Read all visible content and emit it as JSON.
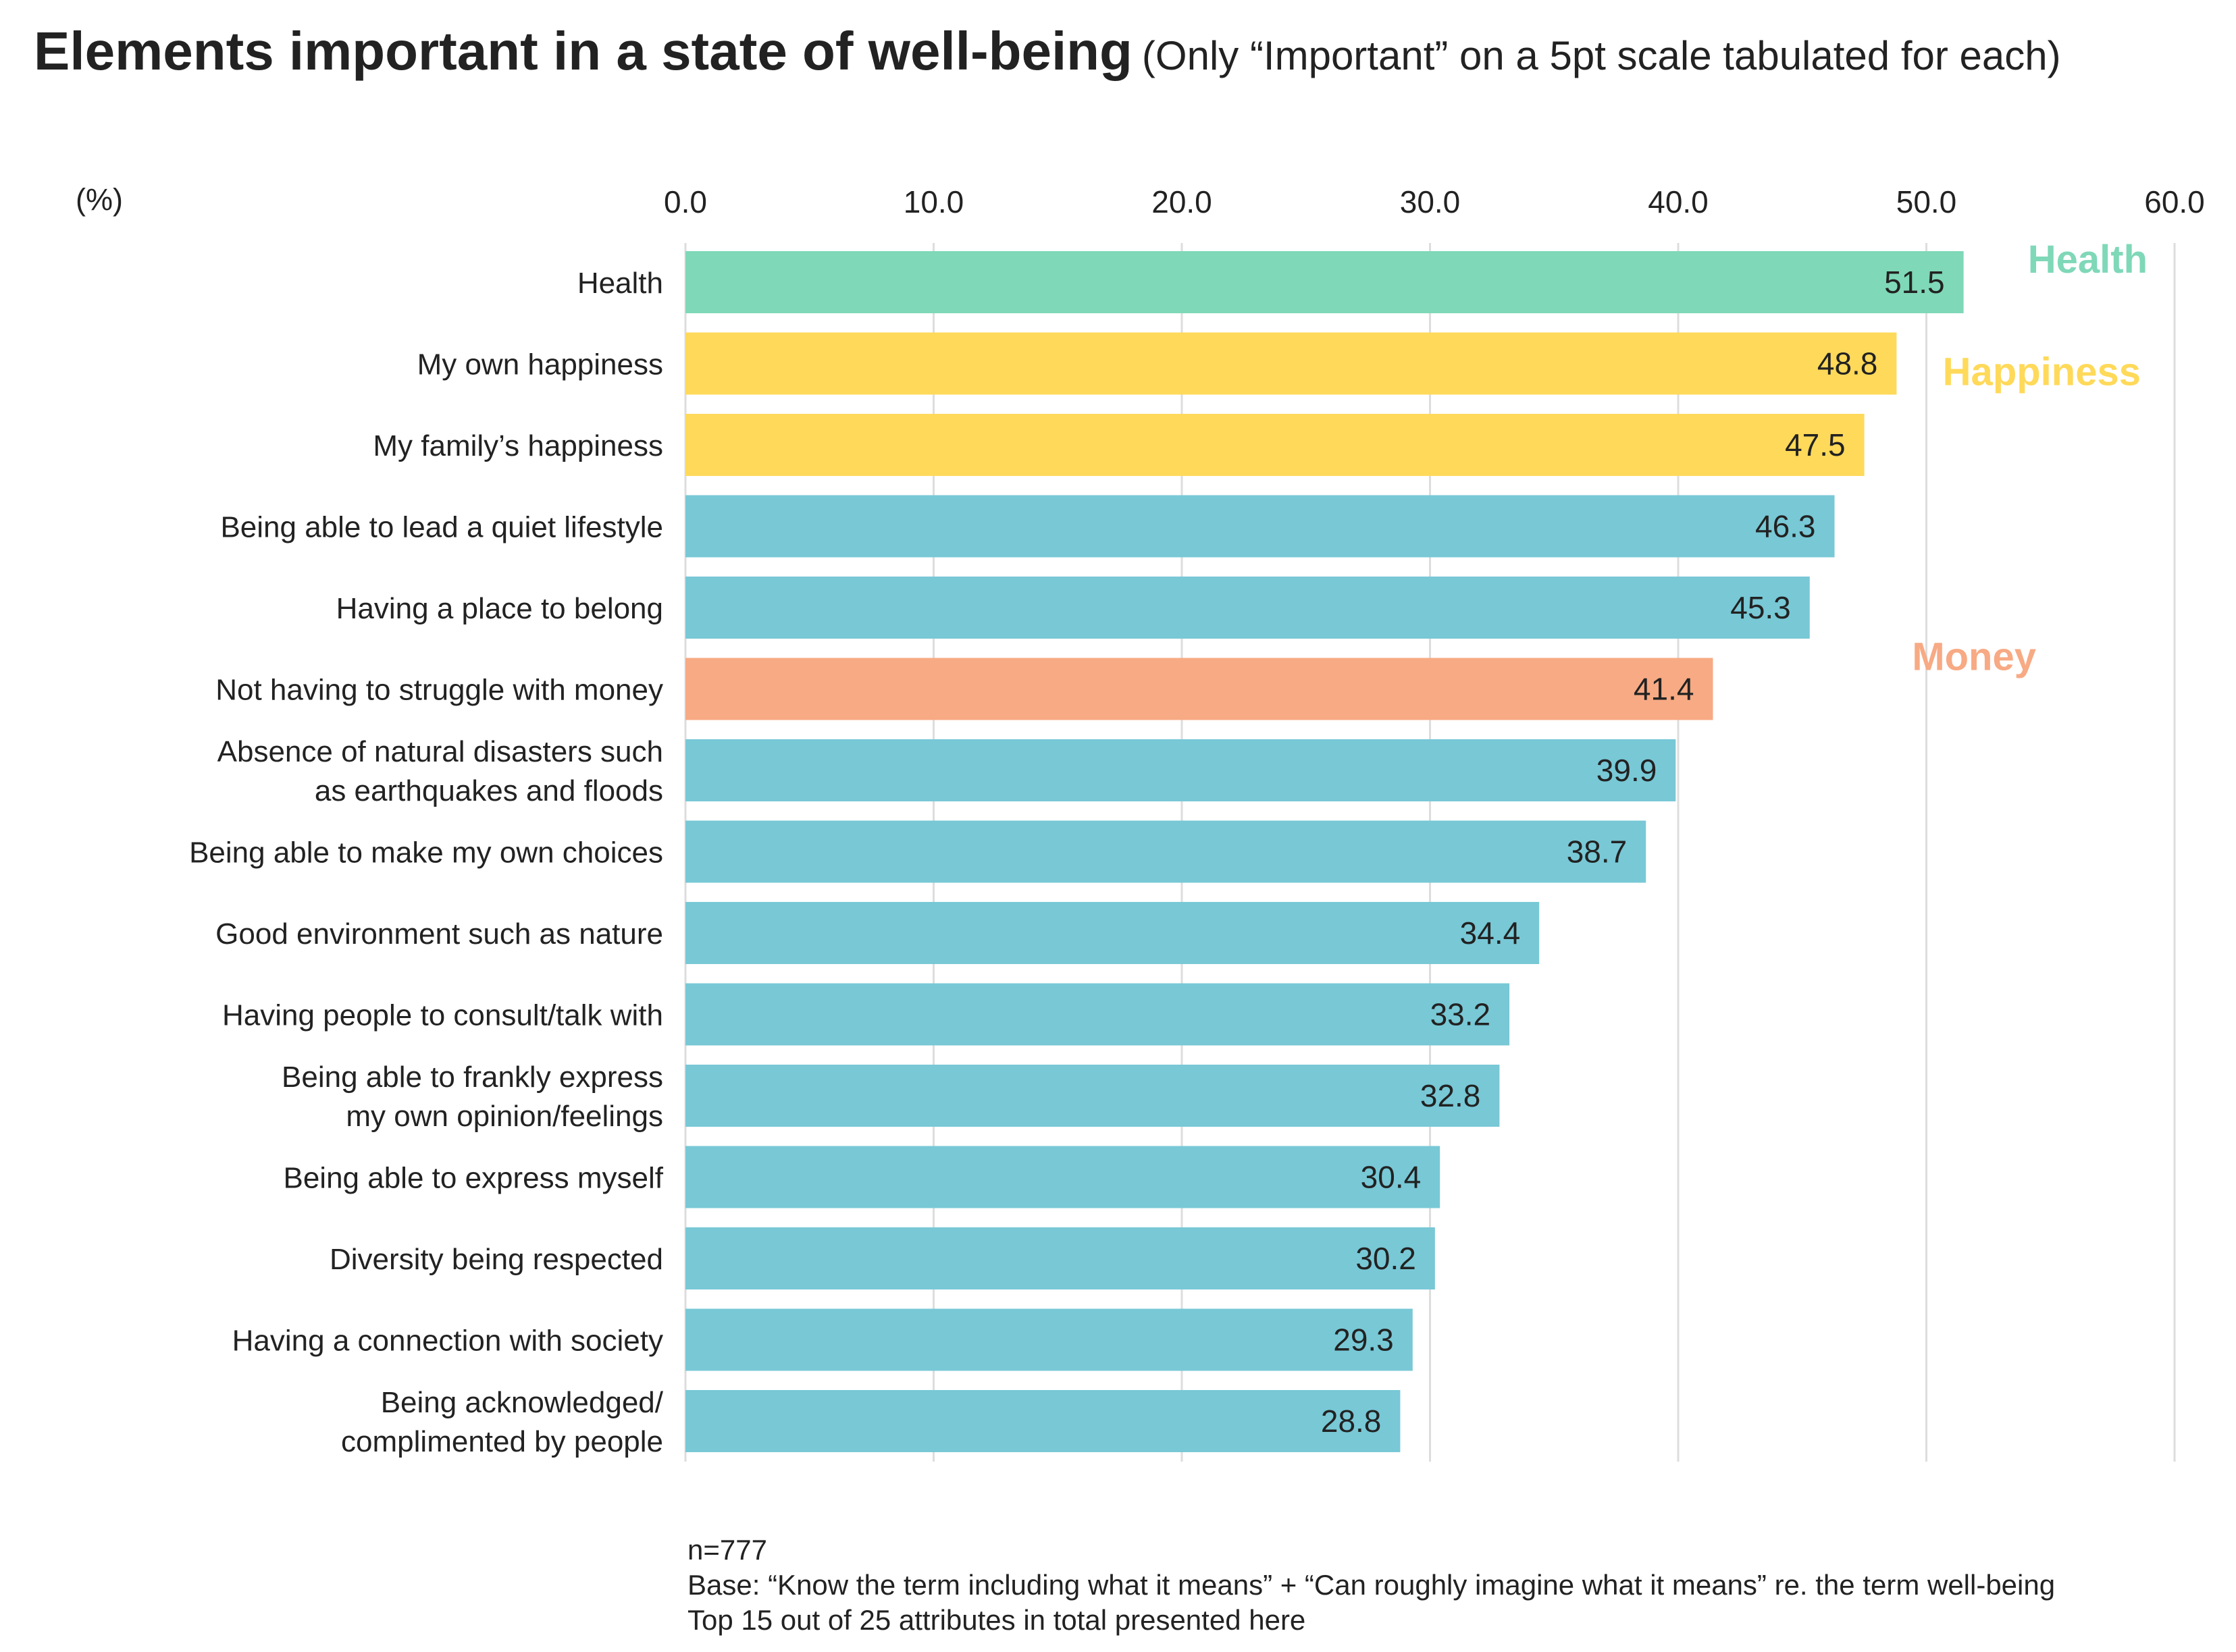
{
  "chart_data": {
    "type": "bar",
    "orientation": "horizontal",
    "title": "Elements important in a state of well-being",
    "subtitle": "(Only “Important” on a 5pt scale tabulated for each)",
    "unit_label": "(%)",
    "xlim": [
      0,
      60
    ],
    "ticks": [
      "0.0",
      "10.0",
      "20.0",
      "30.0",
      "40.0",
      "50.0",
      "60.0"
    ],
    "grid": true,
    "categories": [
      "Health",
      "My own happiness",
      "My family’s happiness",
      "Being able to lead a quiet lifestyle",
      "Having a place to belong",
      "Not having to struggle with money",
      "Absence of natural disasters such\nas earthquakes and floods",
      "Being able to make my own choices",
      "Good environment such as nature",
      "Having people to consult/talk with",
      "Being able to frankly express\nmy own opinion/feelings",
      "Being able to express myself",
      "Diversity being respected",
      "Having a connection with society",
      "Being acknowledged/\ncomplimented by people"
    ],
    "values": [
      51.5,
      48.8,
      47.5,
      46.3,
      45.3,
      41.4,
      39.9,
      38.7,
      34.4,
      33.2,
      32.8,
      30.4,
      30.2,
      29.3,
      28.8
    ],
    "value_labels": [
      "51.5",
      "48.8",
      "47.5",
      "46.3",
      "45.3",
      "41.4",
      "39.9",
      "38.7",
      "34.4",
      "33.2",
      "32.8",
      "30.4",
      "30.2",
      "29.3",
      "28.8"
    ],
    "groups": [
      "health",
      "happiness",
      "happiness",
      "other",
      "other",
      "money",
      "other",
      "other",
      "other",
      "other",
      "other",
      "other",
      "other",
      "other",
      "other"
    ],
    "colors": {
      "health": "#7fd8b8",
      "happiness": "#ffd959",
      "money": "#f7aa84",
      "other": "#78c8d6",
      "grid": "#dddddd",
      "text": "#222222"
    },
    "annotations": [
      {
        "text": "Health",
        "group": "health"
      },
      {
        "text": "Happiness",
        "group": "happiness"
      },
      {
        "text": "Money",
        "group": "money"
      }
    ]
  },
  "notes": {
    "n": "n=777",
    "base": "Base: “Know the term including what it means” + “Can roughly imagine what it means” re. the term well-being",
    "scope": "Top 15 out of 25 attributes in total presented here"
  }
}
